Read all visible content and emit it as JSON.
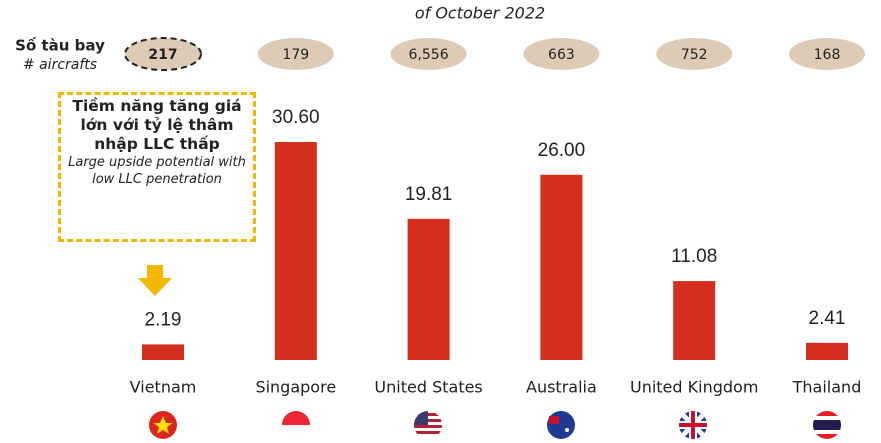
{
  "title": "of October 2022",
  "aircraft_label": "Số tàu bay",
  "aircraft_sublabel": "# aircrafts",
  "aircrafts": [
    217,
    179,
    6556,
    663,
    752,
    168
  ],
  "aircraft_labels": [
    "217",
    "179",
    "6,556",
    "663",
    "752",
    "168"
  ],
  "annotation": {
    "text": "Tiềm năng tăng giá lớn với tỷ lệ thâm nhập LLC thấp",
    "subtext": "Large upside potential with low LLC penetration"
  },
  "chart_data": {
    "type": "bar",
    "categories": [
      "Vietnam",
      "Singapore",
      "United States",
      "Australia",
      "United Kingdom",
      "Thailand"
    ],
    "values": [
      2.19,
      30.6,
      19.81,
      26.0,
      11.08,
      2.41
    ],
    "value_labels": [
      "2.19",
      "30.60",
      "19.81",
      "26.00",
      "11.08",
      "2.41"
    ],
    "color": "#d42e1e"
  }
}
